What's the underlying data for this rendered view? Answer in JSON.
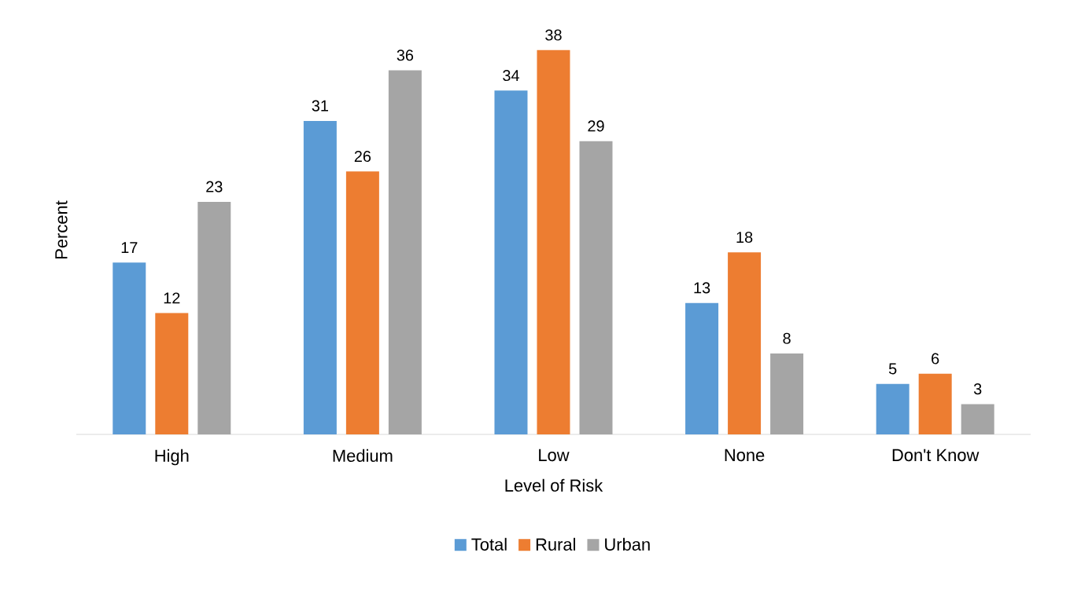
{
  "chart_data": {
    "type": "bar",
    "xlabel": "Level of Risk",
    "ylabel": "Percent",
    "categories": [
      "High",
      "Medium",
      "Low",
      "None",
      "Don't Know"
    ],
    "series": [
      {
        "name": "Total",
        "color": "#5b9bd5",
        "values": [
          17,
          31,
          34,
          13,
          5
        ]
      },
      {
        "name": "Rural",
        "color": "#ed7d31",
        "values": [
          12,
          26,
          38,
          18,
          6
        ]
      },
      {
        "name": "Urban",
        "color": "#a5a5a5",
        "values": [
          23,
          36,
          29,
          8,
          3
        ]
      }
    ],
    "data_labels": true,
    "legend": "bottom"
  }
}
